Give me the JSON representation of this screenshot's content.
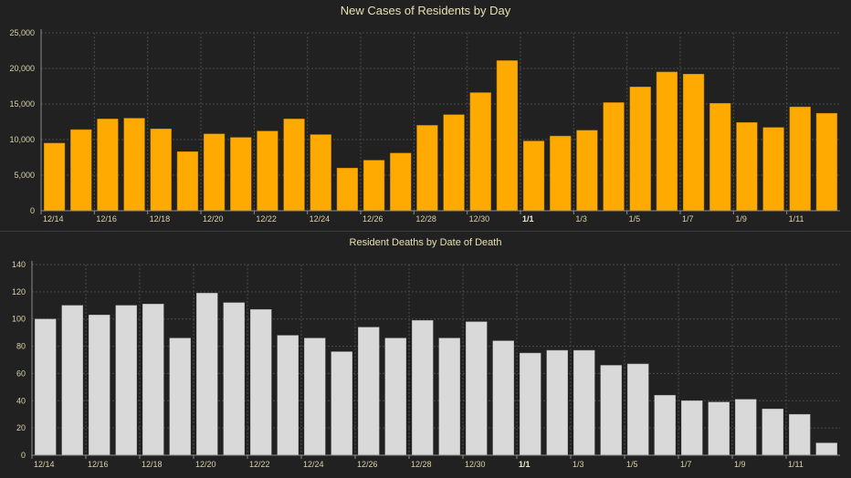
{
  "chart_data": [
    {
      "type": "bar",
      "title": "New Cases of Residents by Day",
      "xlabel": "",
      "ylabel": "",
      "ylim": [
        0,
        25000
      ],
      "yticks": [
        "0",
        "5,000",
        "10,000",
        "15,000",
        "20,000",
        "25,000"
      ],
      "grid": true,
      "categories": [
        "12/14",
        "12/15",
        "12/16",
        "12/17",
        "12/18",
        "12/19",
        "12/20",
        "12/21",
        "12/22",
        "12/23",
        "12/24",
        "12/25",
        "12/26",
        "12/27",
        "12/28",
        "12/29",
        "12/30",
        "12/31",
        "1/1",
        "1/2",
        "1/3",
        "1/4",
        "1/5",
        "1/6",
        "1/7",
        "1/8",
        "1/9",
        "1/10",
        "1/11",
        "1/12"
      ],
      "xtick_labels": [
        "12/14",
        "12/16",
        "12/18",
        "12/20",
        "12/22",
        "12/24",
        "12/26",
        "12/28",
        "12/30",
        "1/1",
        "1/3",
        "1/5",
        "1/7",
        "1/9",
        "1/11"
      ],
      "bold_tick": "1/1",
      "values": [
        9500,
        11400,
        12900,
        13000,
        11500,
        8300,
        10800,
        10300,
        11200,
        12900,
        10700,
        6000,
        7100,
        8100,
        12000,
        13500,
        16600,
        21100,
        9800,
        10500,
        11300,
        15200,
        17400,
        19500,
        19200,
        15100,
        12400,
        11700,
        14600,
        13700
      ],
      "color": "#FFAA00"
    },
    {
      "type": "bar",
      "title": "Resident Deaths by Date of Death",
      "xlabel": "",
      "ylabel": "",
      "ylim": [
        0,
        140
      ],
      "yticks": [
        "0",
        "20",
        "40",
        "60",
        "80",
        "100",
        "120",
        "140"
      ],
      "grid": true,
      "categories": [
        "12/14",
        "12/15",
        "12/16",
        "12/17",
        "12/18",
        "12/19",
        "12/20",
        "12/21",
        "12/22",
        "12/23",
        "12/24",
        "12/25",
        "12/26",
        "12/27",
        "12/28",
        "12/29",
        "12/30",
        "12/31",
        "1/1",
        "1/2",
        "1/3",
        "1/4",
        "1/5",
        "1/6",
        "1/7",
        "1/8",
        "1/9",
        "1/10",
        "1/11",
        "1/12"
      ],
      "xtick_labels": [
        "12/14",
        "12/16",
        "12/18",
        "12/20",
        "12/22",
        "12/24",
        "12/26",
        "12/28",
        "12/30",
        "1/1",
        "1/3",
        "1/5",
        "1/7",
        "1/9",
        "1/11"
      ],
      "bold_tick": "1/1",
      "values": [
        100,
        110,
        103,
        110,
        111,
        86,
        119,
        112,
        107,
        88,
        86,
        76,
        94,
        86,
        99,
        86,
        98,
        84,
        75,
        77,
        77,
        66,
        67,
        44,
        40,
        39,
        41,
        34,
        30,
        9
      ],
      "color": "#D9D9D9"
    }
  ]
}
